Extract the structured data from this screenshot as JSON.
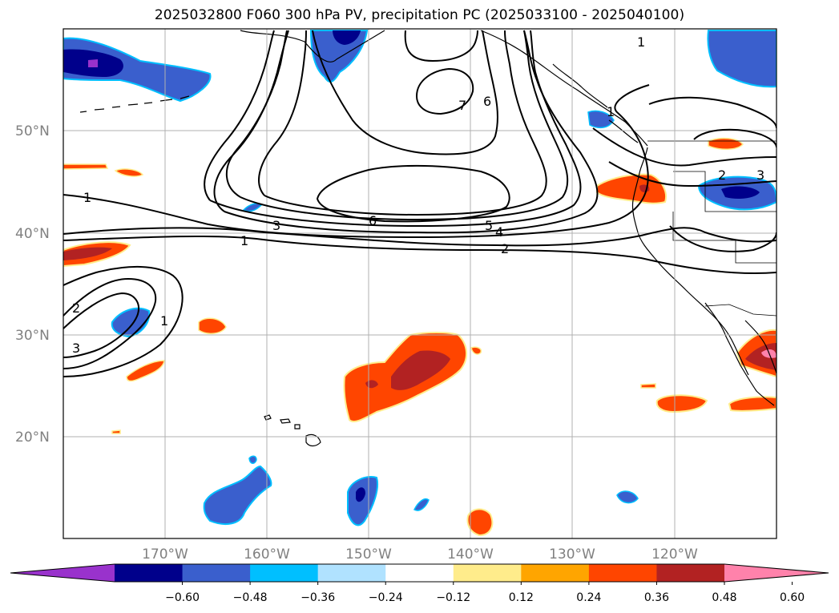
{
  "title": "2025032800 F060 300 hPa PV, precipitation PC (2025033100 - 2025040100)",
  "map": {
    "lat_labels": [
      "50°N",
      "40°N",
      "30°N",
      "20°N"
    ],
    "lon_labels": [
      "170°W",
      "160°W",
      "150°W",
      "140°W",
      "130°W",
      "120°W"
    ],
    "pv_contour_levels": [
      1,
      2,
      3,
      4,
      5,
      6,
      7
    ],
    "contour_labels": [
      {
        "text": "1",
        "name": "pv-label-1-west"
      },
      {
        "text": "1",
        "name": "pv-label-1-center"
      },
      {
        "text": "3",
        "name": "pv-label-3-center"
      },
      {
        "text": "6",
        "name": "pv-label-6-center"
      },
      {
        "text": "5",
        "name": "pv-label-5-center"
      },
      {
        "text": "4",
        "name": "pv-label-4-center"
      },
      {
        "text": "2",
        "name": "pv-label-2-center"
      },
      {
        "text": "7",
        "name": "pv-label-7-north"
      },
      {
        "text": "6",
        "name": "pv-label-6-north"
      },
      {
        "text": "1",
        "name": "pv-label-1-northeast"
      },
      {
        "text": "1",
        "name": "pv-label-1-coast"
      },
      {
        "text": "2",
        "name": "pv-label-2-east"
      },
      {
        "text": "3",
        "name": "pv-label-3-east"
      },
      {
        "text": "2",
        "name": "pv-label-2-southwest"
      },
      {
        "text": "3",
        "name": "pv-label-3-southwest"
      },
      {
        "text": "1",
        "name": "pv-label-1-southwest"
      }
    ]
  },
  "colorbar": {
    "ticks": [
      "−0.60",
      "−0.48",
      "−0.36",
      "−0.24",
      "−0.12",
      "0.12",
      "0.24",
      "0.36",
      "0.48",
      "0.60"
    ],
    "colors": [
      "#9932cc",
      "#00008b",
      "#3a5fcd",
      "#00bfff",
      "#b0e2ff",
      "#ffffff",
      "#ffec8b",
      "#ffa500",
      "#ff4500",
      "#b22222",
      "#ff82ab"
    ]
  },
  "palette": {
    "dark_purple": "#9932cc",
    "navy": "#00008b",
    "royal_blue": "#3a5fcd",
    "deep_sky": "#00bfff",
    "light_sky": "#b0e2ff",
    "light_yellow": "#ffec8b",
    "orange": "#ffa500",
    "orange_red": "#ff4500",
    "firebrick": "#b22222",
    "pink": "#ff82ab"
  }
}
